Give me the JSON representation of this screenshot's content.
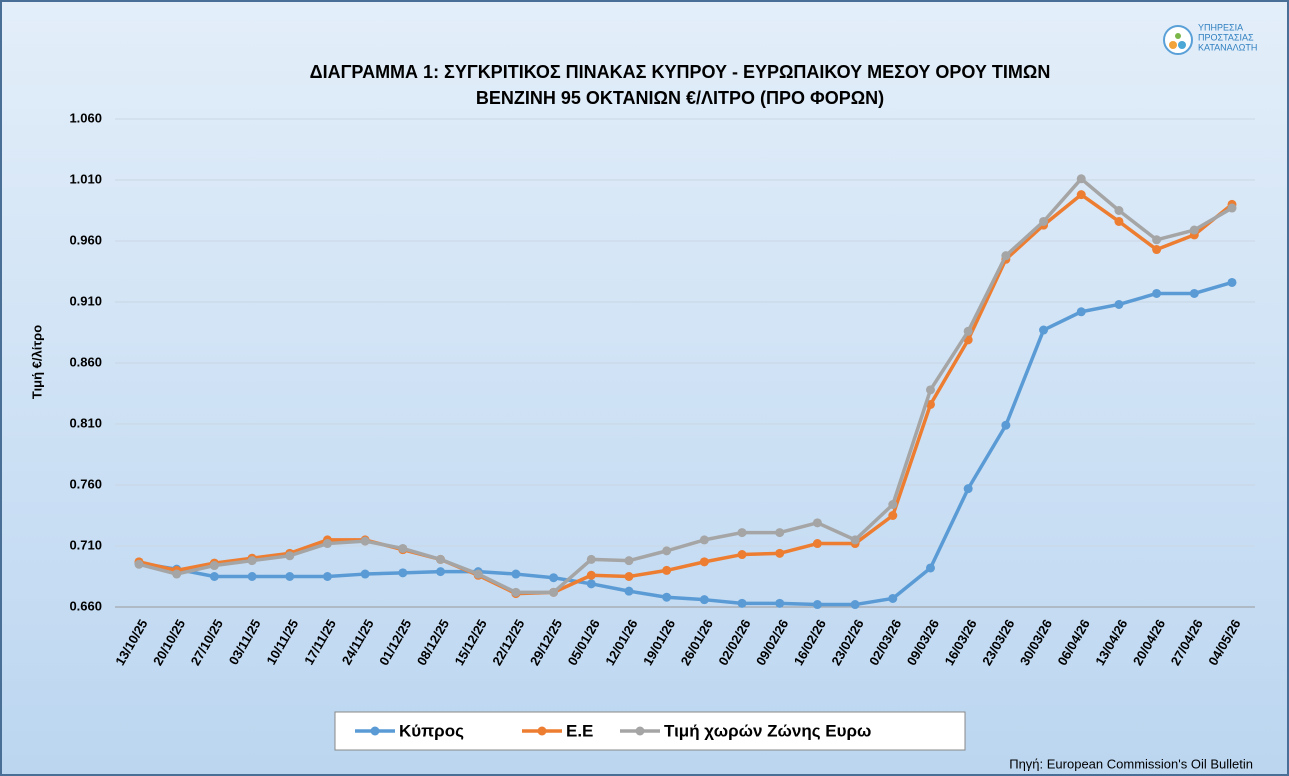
{
  "chart_data": {
    "type": "line",
    "title": [
      "ΔΙΑΓΡΑΜΜΑ 1: ΣΥΓΚΡΙΤΙΚΟΣ ΠΙΝΑΚΑΣ ΚΥΠΡΟΥ - ΕΥΡΩΠΑΙΚΟΥ ΜΕΣΟΥ ΟΡΟΥ ΤΙΜΩΝ",
      "ΒΕΝΖΙΝΗ 95 ΟΚΤΑΝΙΩΝ €/ΛΙΤΡΟ (ΠΡΟ ΦΟΡΩΝ)"
    ],
    "y_label": "Τιμή €/λίτρο",
    "source": "Πηγή: European Commission's Oil Bulletin",
    "logo": [
      "ΥΠΗΡΕΣΙΑ",
      "ΠΡΟΣΤΑΣΙΑΣ",
      "ΚΑΤΑΝΑΛΩΤΗ"
    ],
    "categories": [
      "13/10/25",
      "20/10/25",
      "27/10/25",
      "03/11/25",
      "10/11/25",
      "17/11/25",
      "24/11/25",
      "01/12/25",
      "08/12/25",
      "15/12/25",
      "22/12/25",
      "29/12/25",
      "05/01/26",
      "12/01/26",
      "19/01/26",
      "26/01/26",
      "02/02/26",
      "09/02/26",
      "16/02/26",
      "23/02/26",
      "02/03/26",
      "09/03/26",
      "16/03/26",
      "23/03/26",
      "30/03/26",
      "06/04/26",
      "13/04/26",
      "20/04/26",
      "27/04/26",
      "04/05/26"
    ],
    "series": [
      {
        "name": "Κύπρος",
        "color": "#5b9bd5",
        "values": [
          0.696,
          0.691,
          0.685,
          0.685,
          0.685,
          0.685,
          0.687,
          0.688,
          0.689,
          0.689,
          0.687,
          0.684,
          0.679,
          0.673,
          0.668,
          0.666,
          0.663,
          0.663,
          0.662,
          0.662,
          0.667,
          0.692,
          0.757,
          0.809,
          0.887,
          0.902,
          0.908,
          0.917,
          0.917,
          0.926
        ]
      },
      {
        "name": "Ε.Ε",
        "color": "#ed7d31",
        "values": [
          0.697,
          0.69,
          0.696,
          0.7,
          0.704,
          0.715,
          0.715,
          0.707,
          0.699,
          0.686,
          0.671,
          0.672,
          0.686,
          0.685,
          0.69,
          0.697,
          0.703,
          0.704,
          0.712,
          0.712,
          0.735,
          0.826,
          0.879,
          0.945,
          0.973,
          0.998,
          0.976,
          0.953,
          0.965,
          0.99
        ]
      },
      {
        "name": "Τιμή χωρών Ζώνης Ευρω",
        "color": "#a5a5a5",
        "values": [
          0.695,
          0.687,
          0.694,
          0.698,
          0.702,
          0.712,
          0.714,
          0.708,
          0.699,
          0.687,
          0.672,
          0.672,
          0.699,
          0.698,
          0.706,
          0.715,
          0.721,
          0.721,
          0.729,
          0.715,
          0.744,
          0.838,
          0.886,
          0.948,
          0.976,
          1.011,
          0.985,
          0.961,
          0.969,
          0.987
        ]
      }
    ],
    "ylim": [
      0.66,
      1.06
    ],
    "yticks": [
      {
        "value": 0.66,
        "label": "0.660"
      },
      {
        "value": 0.71,
        "label": "0.710"
      },
      {
        "value": 0.76,
        "label": "0.760"
      },
      {
        "value": 0.81,
        "label": "0.810"
      },
      {
        "value": 0.86,
        "label": "0.860"
      },
      {
        "value": 0.91,
        "label": "0.910"
      },
      {
        "value": 0.96,
        "label": "0.960"
      },
      {
        "value": 1.01,
        "label": "1.010"
      },
      {
        "value": 1.06,
        "label": "1.060"
      }
    ],
    "grid": true,
    "legend": "bottom"
  }
}
